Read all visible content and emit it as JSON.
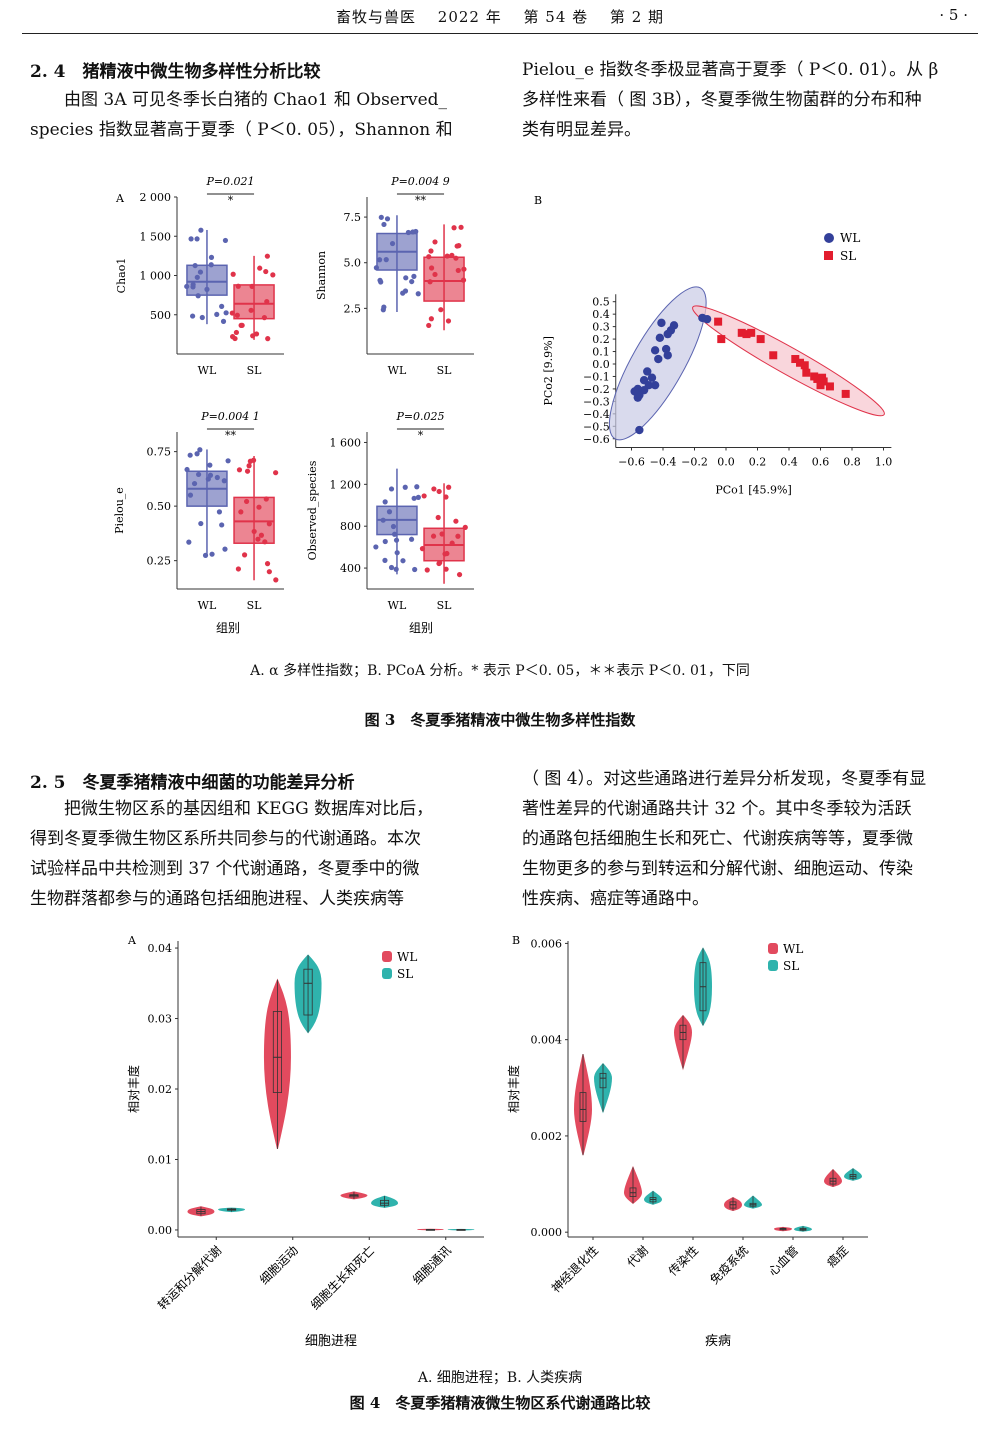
{
  "header": {
    "journal": "畜牧与兽医",
    "year": "2022 年",
    "volume": "第 54 卷",
    "issue": "第 2 期",
    "page": "· 5 ·"
  },
  "sec24": {
    "heading": "2. 4　猪精液中微生物多样性分析比较",
    "left_lines": [
      "由图 3A 可见冬季长白猪的 Chao1 和 Observed_",
      "species 指数显著高于夏季（ P＜0. 05），Shannon 和"
    ],
    "right_lines": [
      "Pielou_e 指数冬季极显著高于夏季（ P＜0. 01）。从 β",
      "多样性来看（ 图 3B），冬夏季微生物菌群的分布和种",
      "类有明显差异。"
    ]
  },
  "fig3": {
    "panel_a_label": "A",
    "panel_b_label": "B",
    "group_axis_label": "组别",
    "group_labels": [
      "WL",
      "SL"
    ],
    "caption_note": "A. α 多样性指数；B. PCoA 分析。* 表示 P＜0. 05，＊＊表示 P＜0. 01，下同",
    "caption": "图 3　冬夏季猪精液中微生物多样性指数"
  },
  "sec25": {
    "heading": "2. 5　冬夏季猪精液中细菌的功能差异分析",
    "left_lines": [
      "把微生物区系的基因组和 KEGG 数据库对比后，",
      "得到冬夏季微生物区系所共同参与的代谢通路。本次",
      "试验样品中共检测到 37 个代谢通路，冬夏季中的微",
      "生物群落都参与的通路包括细胞进程、人类疾病等"
    ],
    "right_lines": [
      "（ 图 4）。对这些通路进行差异分析发现，冬夏季有显",
      "著性差异的代谢通路共计 32 个。其中冬季较为活跃",
      "的通路包括细胞生长和死亡、代谢疾病等等，夏季微",
      "生物更多的参与到转运和分解代谢、细胞运动、传染",
      "性疾病、癌症等通路中。"
    ]
  },
  "fig4": {
    "panel_a_label": "A",
    "panel_b_label": "B",
    "caption_note": "A. 细胞进程；B. 人类疾病",
    "caption": "图 4　冬夏季猪精液微生物区系代谢通路比较"
  },
  "colors": {
    "WL_box": "#5b64b0",
    "SL_box": "#e0334a",
    "WL_violin": "#e24a5e",
    "SL_violin": "#2fb3ad",
    "ellipse_WL": "#c9cbe6",
    "ellipse_SL": "#f6c5cd"
  },
  "chart_data": [
    {
      "id": "fig3a_chao1",
      "type": "box",
      "ylabel": "Chao1",
      "pvalue": "P=0.021",
      "sig": "*",
      "ylim": [
        0,
        2000
      ],
      "yticks": [
        500,
        1000,
        1500,
        2000
      ],
      "ytick_labels": [
        "500",
        "1 000",
        "1 500",
        "2 000"
      ],
      "groups": [
        {
          "name": "WL",
          "min": 380,
          "q1": 750,
          "median": 920,
          "q3": 1130,
          "max": 1580
        },
        {
          "name": "SL",
          "min": 180,
          "q1": 450,
          "median": 640,
          "q3": 880,
          "max": 1250
        }
      ]
    },
    {
      "id": "fig3a_shannon",
      "type": "box",
      "ylabel": "Shannon",
      "pvalue": "P=0.004 9",
      "sig": "**",
      "ylim": [
        0,
        8.6
      ],
      "yticks": [
        2.5,
        5.0,
        7.5
      ],
      "ytick_labels": [
        "2.5",
        "5.0",
        "7.5"
      ],
      "groups": [
        {
          "name": "WL",
          "min": 2.3,
          "q1": 4.6,
          "median": 5.6,
          "q3": 6.6,
          "max": 7.6
        },
        {
          "name": "SL",
          "min": 1.3,
          "q1": 2.9,
          "median": 4.0,
          "q3": 5.3,
          "max": 7.1
        }
      ]
    },
    {
      "id": "fig3a_pielou",
      "type": "box",
      "ylabel": "Pielou_e",
      "pvalue": "P=0.004 1",
      "sig": "**",
      "ylim": [
        0.12,
        0.84
      ],
      "yticks": [
        0.25,
        0.5,
        0.75
      ],
      "ytick_labels": [
        "0.25",
        "0.50",
        "0.75"
      ],
      "groups": [
        {
          "name": "WL",
          "min": 0.27,
          "q1": 0.5,
          "median": 0.58,
          "q3": 0.66,
          "max": 0.76
        },
        {
          "name": "SL",
          "min": 0.16,
          "q1": 0.33,
          "median": 0.43,
          "q3": 0.54,
          "max": 0.73
        }
      ]
    },
    {
      "id": "fig3a_observed",
      "type": "box",
      "ylabel": "Observed_species",
      "pvalue": "P=0.025",
      "sig": "*",
      "ylim": [
        200,
        1700
      ],
      "yticks": [
        400,
        800,
        1200,
        1600
      ],
      "ytick_labels": [
        "400",
        "800",
        "1 200",
        "1 600"
      ],
      "groups": [
        {
          "name": "WL",
          "min": 340,
          "q1": 720,
          "median": 860,
          "q3": 990,
          "max": 1350
        },
        {
          "name": "SL",
          "min": 250,
          "q1": 470,
          "median": 620,
          "q3": 780,
          "max": 1210
        }
      ]
    },
    {
      "id": "fig3b_pcoa",
      "type": "scatter",
      "xlabel": "PCo1 [45.9%]",
      "ylabel": "PCo2 [9.9%]",
      "xlim": [
        -0.7,
        1.05
      ],
      "ylim": [
        -0.67,
        0.56
      ],
      "xticks": [
        -0.6,
        -0.4,
        -0.2,
        0.0,
        0.2,
        0.4,
        0.6,
        0.8,
        1.0
      ],
      "xtick_labels": [
        "−0.6",
        "−0.4",
        "−0.2",
        "0.0",
        "0.2",
        "0.4",
        "0.6",
        "0.8",
        "1.0"
      ],
      "yticks": [
        -0.6,
        -0.5,
        -0.4,
        -0.3,
        -0.2,
        -0.1,
        0.0,
        0.1,
        0.2,
        0.3,
        0.4,
        0.5
      ],
      "ytick_labels": [
        "−0.6",
        "−0.5",
        "−0.4",
        "−0.3",
        "−0.2",
        "−0.1",
        "0.0",
        "0.1",
        "0.2",
        "0.3",
        "0.4",
        "0.5"
      ],
      "legend": [
        "WL",
        "SL"
      ],
      "legend_position": "top-right",
      "series": [
        {
          "name": "WL",
          "points": [
            [
              -0.15,
              0.37
            ],
            [
              -0.12,
              0.36
            ],
            [
              -0.41,
              0.33
            ],
            [
              -0.33,
              0.31
            ],
            [
              -0.35,
              0.27
            ],
            [
              -0.37,
              0.24
            ],
            [
              -0.42,
              0.21
            ],
            [
              -0.38,
              0.12
            ],
            [
              -0.45,
              0.11
            ],
            [
              -0.37,
              0.07
            ],
            [
              -0.43,
              0.04
            ],
            [
              -0.5,
              -0.06
            ],
            [
              -0.47,
              -0.11
            ],
            [
              -0.52,
              -0.13
            ],
            [
              -0.49,
              -0.17
            ],
            [
              -0.45,
              -0.17
            ],
            [
              -0.52,
              -0.21
            ],
            [
              -0.56,
              -0.2
            ],
            [
              -0.55,
              -0.25
            ],
            [
              -0.58,
              -0.22
            ],
            [
              -0.56,
              -0.27
            ],
            [
              -0.55,
              -0.53
            ]
          ]
        },
        {
          "name": "SL",
          "points": [
            [
              -0.05,
              0.34
            ],
            [
              0.1,
              0.25
            ],
            [
              0.13,
              0.24
            ],
            [
              0.16,
              0.25
            ],
            [
              -0.03,
              0.2
            ],
            [
              0.22,
              0.2
            ],
            [
              0.3,
              0.07
            ],
            [
              0.44,
              0.04
            ],
            [
              0.47,
              0.01
            ],
            [
              0.5,
              -0.01
            ],
            [
              0.51,
              -0.07
            ],
            [
              0.56,
              -0.1
            ],
            [
              0.58,
              -0.12
            ],
            [
              0.61,
              -0.11
            ],
            [
              0.62,
              -0.14
            ],
            [
              0.6,
              -0.17
            ],
            [
              0.66,
              -0.18
            ],
            [
              0.76,
              -0.24
            ]
          ]
        }
      ]
    },
    {
      "id": "fig4a_cell",
      "type": "violin",
      "xlabel": "细胞进程",
      "ylabel": "相对丰度",
      "ylim": [
        -0.001,
        0.041
      ],
      "yticks": [
        0,
        0.01,
        0.02,
        0.03,
        0.04
      ],
      "ytick_labels": [
        "0.00",
        "0.01",
        "0.02",
        "0.03",
        "0.04"
      ],
      "categories": [
        "转运和分解代谢",
        "细胞运动",
        "细胞生长和死亡",
        "细胞通讯"
      ],
      "legend": [
        "WL",
        "SL"
      ],
      "legend_position": "top-right",
      "series": [
        {
          "name": "WL",
          "boxes": [
            {
              "min": 0.002,
              "q1": 0.0023,
              "median": 0.0026,
              "q3": 0.0029,
              "max": 0.0033
            },
            {
              "min": 0.0115,
              "q1": 0.0195,
              "median": 0.0245,
              "q3": 0.031,
              "max": 0.0355
            },
            {
              "min": 0.0044,
              "q1": 0.0047,
              "median": 0.0049,
              "q3": 0.005,
              "max": 0.0054
            },
            {
              "min": 2e-05,
              "q1": 4e-05,
              "median": 6e-05,
              "q3": 8e-05,
              "max": 0.0001
            }
          ]
        },
        {
          "name": "SL",
          "boxes": [
            {
              "min": 0.0026,
              "q1": 0.0028,
              "median": 0.0029,
              "q3": 0.003,
              "max": 0.0031
            },
            {
              "min": 0.028,
              "q1": 0.0305,
              "median": 0.035,
              "q3": 0.037,
              "max": 0.039
            },
            {
              "min": 0.0032,
              "q1": 0.0035,
              "median": 0.0038,
              "q3": 0.0042,
              "max": 0.0048
            },
            {
              "min": 1e-05,
              "q1": 3e-05,
              "median": 5e-05,
              "q3": 7e-05,
              "max": 9e-05
            }
          ]
        }
      ]
    },
    {
      "id": "fig4b_disease",
      "type": "violin",
      "xlabel": "疾病",
      "ylabel": "相对丰度",
      "ylim": [
        -0.0001,
        0.00605
      ],
      "yticks": [
        0,
        0.002,
        0.004,
        0.006
      ],
      "ytick_labels": [
        "0.000",
        "0.002",
        "0.004",
        "0.006"
      ],
      "categories": [
        "神经退化性",
        "代谢",
        "传染性",
        "免疫系统",
        "心血管",
        "癌症"
      ],
      "legend": [
        "WL",
        "SL"
      ],
      "legend_position": "top-right",
      "series": [
        {
          "name": "WL",
          "boxes": [
            {
              "min": 0.0016,
              "q1": 0.0023,
              "median": 0.00255,
              "q3": 0.0029,
              "max": 0.0037
            },
            {
              "min": 0.0006,
              "q1": 0.00074,
              "median": 0.00082,
              "q3": 0.00092,
              "max": 0.00135
            },
            {
              "min": 0.0034,
              "q1": 0.004,
              "median": 0.00415,
              "q3": 0.0043,
              "max": 0.0045
            },
            {
              "min": 0.00045,
              "q1": 0.0005,
              "median": 0.00057,
              "q3": 0.00063,
              "max": 0.00072
            },
            {
              "min": 3e-05,
              "q1": 5e-05,
              "median": 7e-05,
              "q3": 8e-05,
              "max": 0.0001
            },
            {
              "min": 0.00095,
              "q1": 0.001,
              "median": 0.00106,
              "q3": 0.00112,
              "max": 0.0013
            }
          ]
        },
        {
          "name": "SL",
          "boxes": [
            {
              "min": 0.0025,
              "q1": 0.003,
              "median": 0.0032,
              "q3": 0.0033,
              "max": 0.0035
            },
            {
              "min": 0.00058,
              "q1": 0.00063,
              "median": 0.00068,
              "q3": 0.00072,
              "max": 0.00085
            },
            {
              "min": 0.0043,
              "q1": 0.0046,
              "median": 0.0051,
              "q3": 0.0056,
              "max": 0.0059
            },
            {
              "min": 0.0005,
              "q1": 0.00054,
              "median": 0.00057,
              "q3": 0.0006,
              "max": 0.00075
            },
            {
              "min": 2e-05,
              "q1": 4e-05,
              "median": 6e-05,
              "q3": 8e-05,
              "max": 0.00012
            },
            {
              "min": 0.00108,
              "q1": 0.00112,
              "median": 0.00116,
              "q3": 0.0012,
              "max": 0.00132
            }
          ]
        }
      ]
    }
  ]
}
